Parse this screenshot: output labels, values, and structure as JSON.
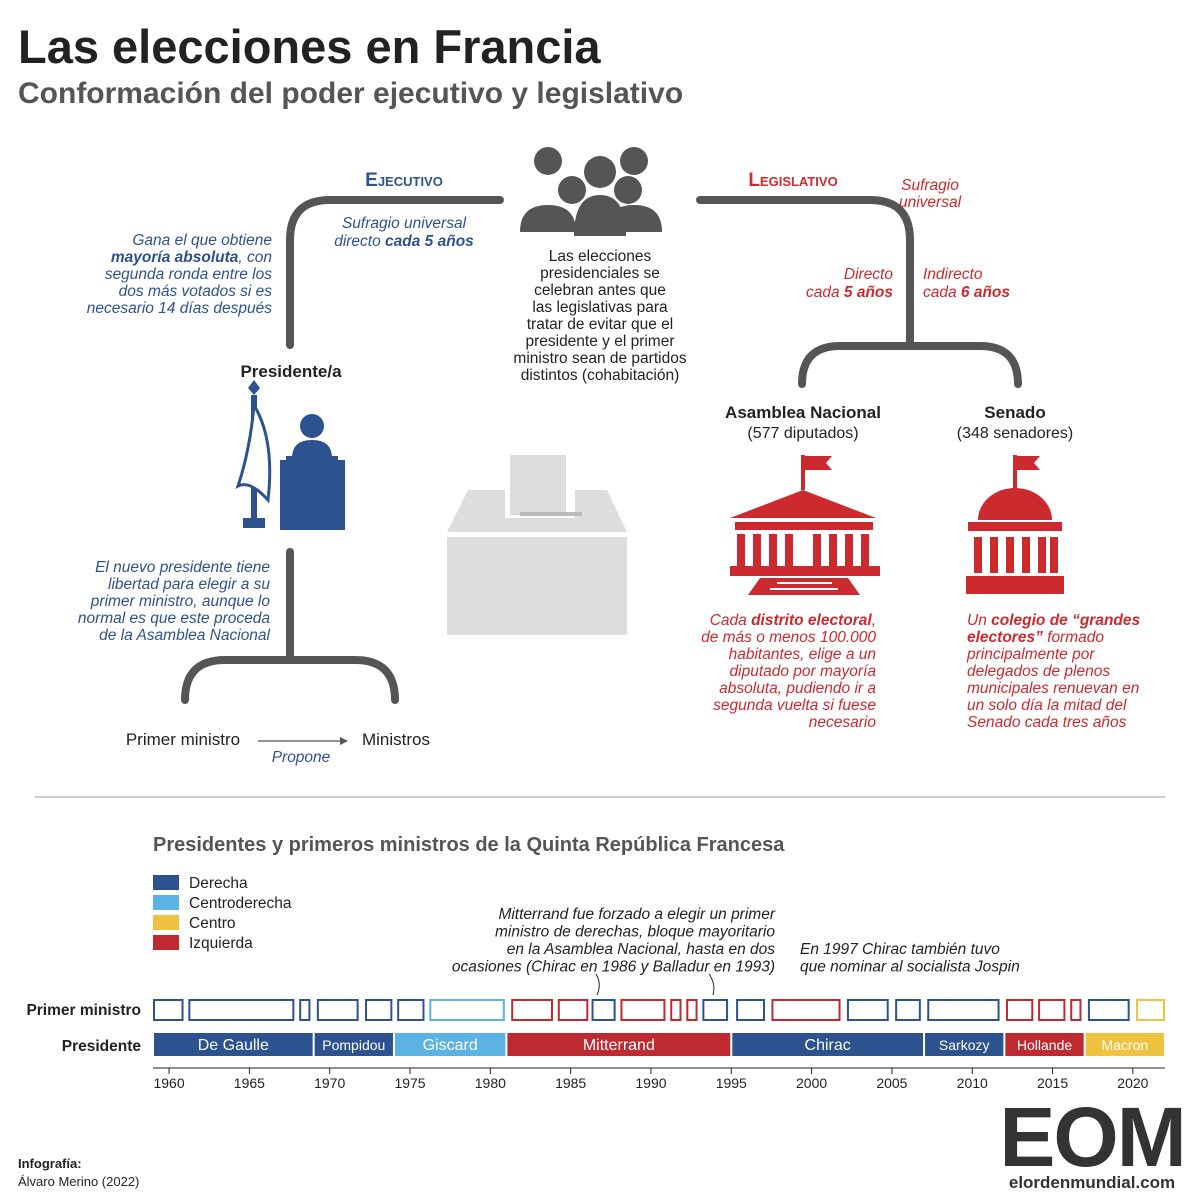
{
  "header": {
    "title": "Las elecciones en Francia",
    "subtitle": "Conformación del poder ejecutivo y legislativo"
  },
  "executive": {
    "heading": "Ejecutivo",
    "suffrage": [
      [
        "Sufragio universal"
      ],
      [
        "directo ",
        {
          "b": "cada 5 años"
        }
      ]
    ],
    "rule": [
      [
        "Gana el que obtiene"
      ],
      [
        {
          "b": "mayoría absoluta"
        },
        ", con"
      ],
      [
        "segunda ronda entre los"
      ],
      [
        "dos más votados si es"
      ],
      [
        "necesario 14 días después"
      ]
    ],
    "president": "Presidente/a",
    "appointment": [
      [
        "El nuevo presidente tiene"
      ],
      [
        "libertad para elegir a su"
      ],
      [
        "primer ministro, aunque lo"
      ],
      [
        "normal es que este proceda"
      ],
      [
        "de la Asamblea Nacional"
      ]
    ],
    "prime_minister": "Primer ministro",
    "ministers": "Ministros",
    "proposes": "Propone"
  },
  "center_note": [
    "Las elecciones",
    "presidenciales se",
    "celebran antes que",
    "las legislativas para",
    "tratar de evitar que el",
    "presidente y el primer",
    "ministro sean de partidos",
    "distintos (cohabitación)"
  ],
  "legislative": {
    "heading": "Legislativo",
    "suffrage": [
      "Sufragio",
      "universal"
    ],
    "direct": [
      [
        "Directo"
      ],
      [
        "cada ",
        {
          "b": "5 años"
        }
      ]
    ],
    "indirect": [
      [
        "Indirecto"
      ],
      [
        "cada ",
        {
          "b": "6 años"
        }
      ]
    ],
    "assembly": {
      "name": "Asamblea Nacional",
      "seats": "(577 diputados)",
      "note": [
        [
          "Cada ",
          {
            "b": "distrito electoral"
          },
          ","
        ],
        [
          "de más o menos 100.000"
        ],
        [
          "habitantes, elige a un"
        ],
        [
          "diputado por mayoría"
        ],
        [
          "absoluta, pudiendo ir a"
        ],
        [
          "segunda vuelta si fuese"
        ],
        [
          "necesario"
        ]
      ]
    },
    "senate": {
      "name": "Senado",
      "seats": "(348 senadores)",
      "note": [
        [
          "Un ",
          {
            "b": "colegio de “grandes"
          }
        ],
        [
          {
            "b": "electores”"
          },
          " formado"
        ],
        [
          "principalmente por"
        ],
        [
          "delegados de plenos"
        ],
        [
          "municipales renuevan en"
        ],
        [
          "un solo día la mitad del"
        ],
        [
          "Senado cada tres años"
        ]
      ]
    }
  },
  "timeline": {
    "title": "Presidentes y primeros ministros de la Quinta República Francesa",
    "legend": [
      {
        "name": "Derecha",
        "color": "#2d5290"
      },
      {
        "name": "Centroderecha",
        "color": "#5bb3e3"
      },
      {
        "name": "Centro",
        "color": "#efc23f"
      },
      {
        "name": "Izquierda",
        "color": "#bf2a30"
      }
    ],
    "row_labels": {
      "pm": "Primer ministro",
      "president": "Presidente"
    },
    "xlim": [
      1959,
      2022
    ],
    "xticks": [
      1960,
      1965,
      1970,
      1975,
      1980,
      1985,
      1990,
      1995,
      2000,
      2005,
      2010,
      2015,
      2020
    ],
    "presidents": [
      {
        "name": "De Gaulle",
        "start": 1959,
        "end": 1969,
        "bloc": 0
      },
      {
        "name": "Pompidou",
        "start": 1969,
        "end": 1974,
        "bloc": 0
      },
      {
        "name": "Giscard",
        "start": 1974,
        "end": 1981,
        "bloc": 1
      },
      {
        "name": "Mitterrand",
        "start": 1981,
        "end": 1995,
        "bloc": 3
      },
      {
        "name": "Chirac",
        "start": 1995,
        "end": 2007,
        "bloc": 0
      },
      {
        "name": "Sarkozy",
        "start": 2007,
        "end": 2012,
        "bloc": 0
      },
      {
        "name": "Hollande",
        "start": 2012,
        "end": 2017,
        "bloc": 3
      },
      {
        "name": "Macron",
        "start": 2017,
        "end": 2022,
        "bloc": 2
      }
    ],
    "prime_ministers": [
      {
        "start": 1959.0,
        "end": 1960.9,
        "bloc": 0
      },
      {
        "start": 1961.2,
        "end": 1967.8,
        "bloc": 0
      },
      {
        "start": 1968.1,
        "end": 1968.8,
        "bloc": 0
      },
      {
        "start": 1969.2,
        "end": 1971.8,
        "bloc": 0
      },
      {
        "start": 1972.2,
        "end": 1973.9,
        "bloc": 0
      },
      {
        "start": 1974.2,
        "end": 1975.9,
        "bloc": 0
      },
      {
        "start": 1976.2,
        "end": 1980.9,
        "bloc": 1
      },
      {
        "start": 1981.3,
        "end": 1983.9,
        "bloc": 3
      },
      {
        "start": 1984.2,
        "end": 1986.1,
        "bloc": 3
      },
      {
        "start": 1986.3,
        "end": 1987.8,
        "bloc": 0
      },
      {
        "start": 1988.1,
        "end": 1990.9,
        "bloc": 3
      },
      {
        "start": 1991.2,
        "end": 1991.9,
        "bloc": 3
      },
      {
        "start": 1992.2,
        "end": 1992.9,
        "bloc": 3
      },
      {
        "start": 1993.2,
        "end": 1994.8,
        "bloc": 0
      },
      {
        "start": 1995.3,
        "end": 1997.1,
        "bloc": 0
      },
      {
        "start": 1997.5,
        "end": 2001.8,
        "bloc": 3
      },
      {
        "start": 2002.2,
        "end": 2004.8,
        "bloc": 0
      },
      {
        "start": 2005.2,
        "end": 2006.8,
        "bloc": 0
      },
      {
        "start": 2007.2,
        "end": 2011.7,
        "bloc": 0
      },
      {
        "start": 2012.1,
        "end": 2013.8,
        "bloc": 3
      },
      {
        "start": 2014.1,
        "end": 2015.8,
        "bloc": 3
      },
      {
        "start": 2016.1,
        "end": 2016.8,
        "bloc": 3
      },
      {
        "start": 2017.2,
        "end": 2019.8,
        "bloc": 0
      },
      {
        "start": 2020.2,
        "end": 2022.0,
        "bloc": 2
      }
    ],
    "annotations": [
      [
        "Mitterrand fue forzado a elegir un primer",
        "ministro de derechas,  bloque mayoritario",
        "en la Asamblea Nacional, hasta en dos",
        "ocasiones (Chirac en 1986 y Balladur en 1993)"
      ],
      [
        "En 1997 Chirac también tuvo",
        "que nominar al socialista Jospin"
      ]
    ]
  },
  "credits": {
    "label": "Infografía:",
    "author": "Álvaro Merino (2022)"
  },
  "logo": {
    "mark": "EOM",
    "site": "elordenmundial.com"
  }
}
